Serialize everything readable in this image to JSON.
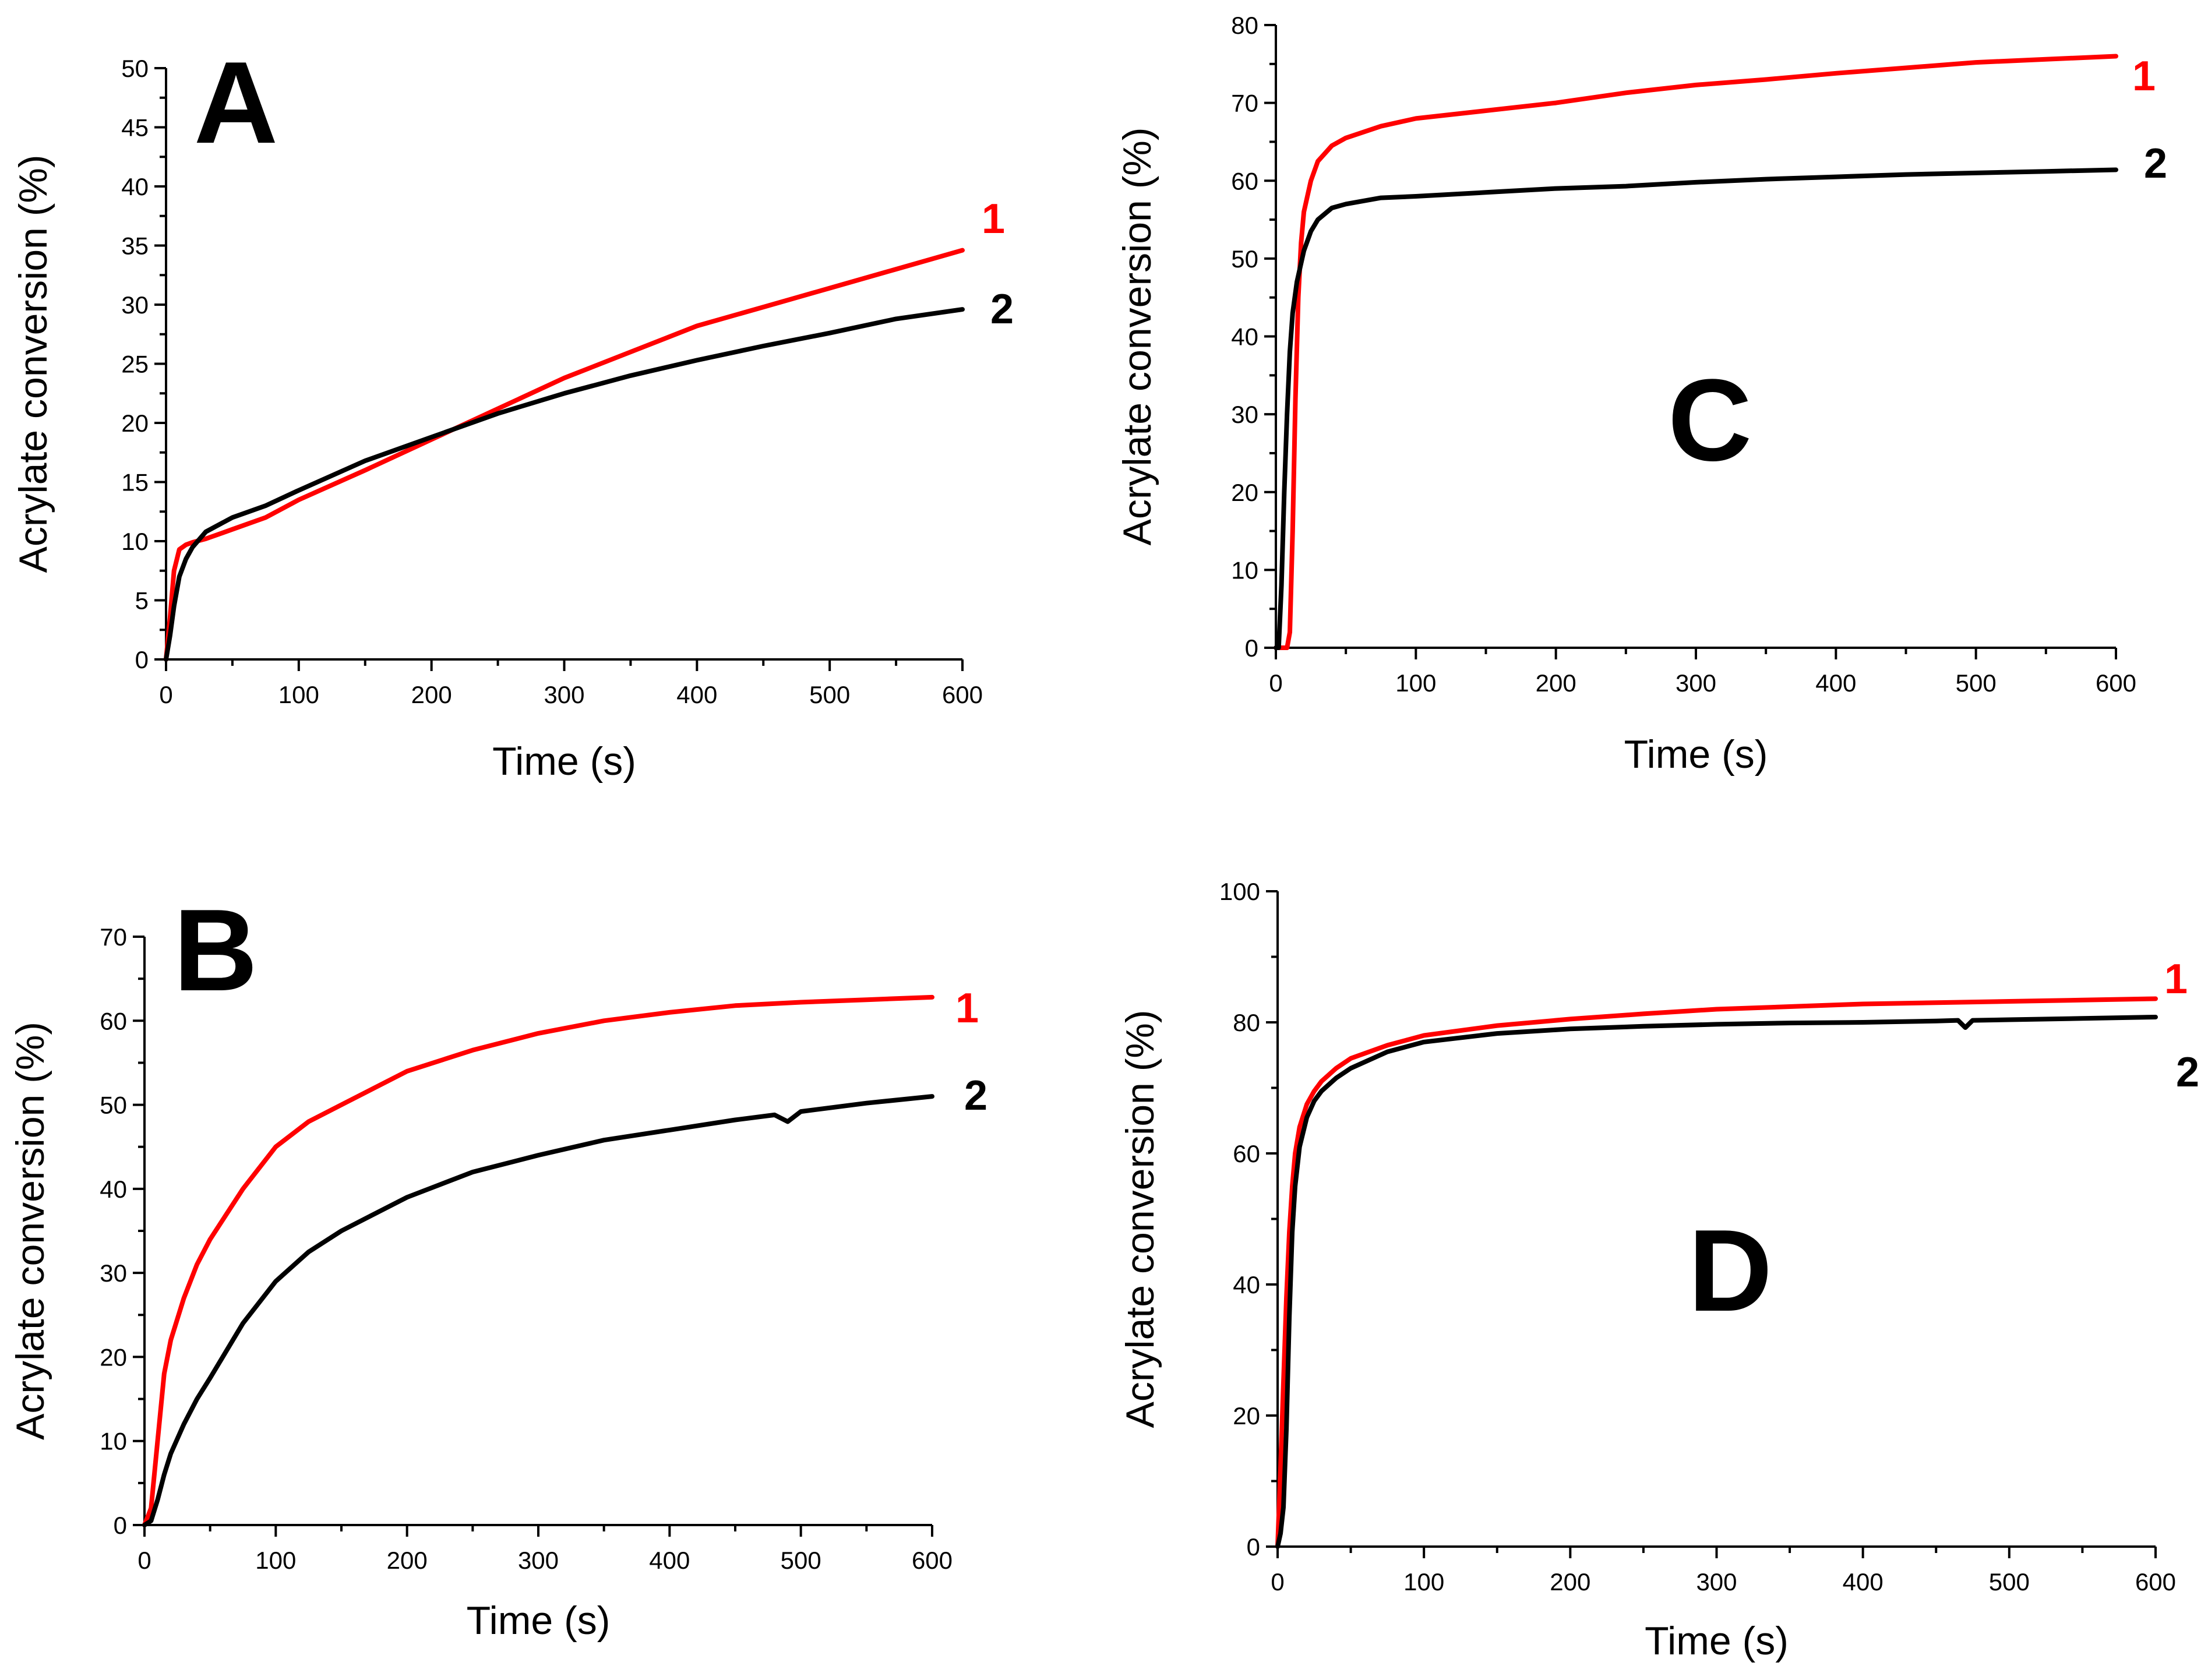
{
  "colors": {
    "series_1": "#ff0000",
    "series_2": "#000000",
    "axis": "#000000"
  },
  "chart_data": [
    {
      "type": "line",
      "panel_label": "A",
      "title": "",
      "xlabel": "Time (s)",
      "ylabel": "Acrylate conversion (%)",
      "xlim": [
        0,
        600
      ],
      "ylim": [
        0,
        50
      ],
      "x_major_ticks": [
        0,
        100,
        200,
        300,
        400,
        500,
        600
      ],
      "y_major_ticks": [
        0,
        5,
        10,
        15,
        20,
        25,
        30,
        35,
        40,
        45,
        50
      ],
      "grid": false,
      "series": [
        {
          "name": "1",
          "color": "#ff0000",
          "x": [
            0,
            3,
            6,
            10,
            15,
            20,
            30,
            50,
            75,
            100,
            150,
            200,
            250,
            300,
            350,
            400,
            450,
            500,
            550,
            600
          ],
          "y": [
            0,
            3.5,
            7.5,
            9.3,
            9.7,
            9.9,
            10.2,
            11.0,
            12.0,
            13.5,
            16.0,
            18.6,
            21.2,
            23.8,
            26.0,
            28.2,
            29.8,
            31.4,
            33.0,
            34.6
          ]
        },
        {
          "name": "2",
          "color": "#000000",
          "x": [
            0,
            3,
            6,
            10,
            15,
            20,
            30,
            50,
            75,
            100,
            150,
            200,
            250,
            300,
            350,
            400,
            450,
            500,
            550,
            600
          ],
          "y": [
            0,
            2.0,
            4.5,
            7.0,
            8.5,
            9.5,
            10.8,
            12.0,
            13.0,
            14.3,
            16.8,
            18.8,
            20.8,
            22.5,
            24.0,
            25.3,
            26.5,
            27.6,
            28.8,
            29.6
          ]
        }
      ]
    },
    {
      "type": "line",
      "panel_label": "B",
      "title": "",
      "xlabel": "Time (s)",
      "ylabel": "Acrylate conversion (%)",
      "xlim": [
        0,
        600
      ],
      "ylim": [
        0,
        70
      ],
      "x_major_ticks": [
        0,
        100,
        200,
        300,
        400,
        500,
        600
      ],
      "y_major_ticks": [
        0,
        10,
        20,
        30,
        40,
        50,
        60,
        70
      ],
      "grid": false,
      "series": [
        {
          "name": "1",
          "color": "#ff0000",
          "x": [
            0,
            5,
            10,
            15,
            20,
            30,
            40,
            50,
            75,
            100,
            125,
            150,
            200,
            250,
            300,
            350,
            400,
            450,
            500,
            550,
            600
          ],
          "y": [
            0,
            2,
            10,
            18,
            22,
            27,
            31,
            34,
            40,
            45,
            48,
            50,
            54,
            56.5,
            58.5,
            60,
            61,
            61.8,
            62.2,
            62.5,
            62.8
          ]
        },
        {
          "name": "2",
          "color": "#000000",
          "x": [
            0,
            5,
            10,
            15,
            20,
            30,
            40,
            50,
            75,
            100,
            125,
            150,
            200,
            250,
            300,
            350,
            400,
            450,
            480,
            490,
            500,
            550,
            600
          ],
          "y": [
            0,
            0.5,
            3,
            6,
            8.5,
            12,
            15,
            17.5,
            24,
            29,
            32.5,
            35,
            39,
            42,
            44,
            45.8,
            47,
            48.2,
            48.8,
            48.0,
            49.2,
            50.2,
            51
          ]
        }
      ]
    },
    {
      "type": "line",
      "panel_label": "C",
      "title": "",
      "xlabel": "Time (s)",
      "ylabel": "Acrylate conversion (%)",
      "xlim": [
        0,
        600
      ],
      "ylim": [
        0,
        80
      ],
      "x_major_ticks": [
        0,
        100,
        200,
        300,
        400,
        500,
        600
      ],
      "y_major_ticks": [
        0,
        10,
        20,
        30,
        40,
        50,
        60,
        70,
        80
      ],
      "grid": false,
      "series": [
        {
          "name": "1",
          "color": "#ff0000",
          "x": [
            0,
            8,
            10,
            12,
            14,
            16,
            18,
            20,
            25,
            30,
            40,
            50,
            75,
            100,
            150,
            200,
            250,
            300,
            350,
            400,
            450,
            500,
            550,
            600
          ],
          "y": [
            0,
            0,
            2,
            15,
            32,
            45,
            52,
            56,
            60,
            62.5,
            64.5,
            65.5,
            67,
            68,
            69,
            70,
            71.3,
            72.3,
            73,
            73.8,
            74.5,
            75.2,
            75.6,
            76
          ]
        },
        {
          "name": "2",
          "color": "#000000",
          "x": [
            0,
            2,
            4,
            6,
            8,
            10,
            12,
            15,
            20,
            25,
            30,
            40,
            50,
            75,
            100,
            150,
            200,
            250,
            300,
            350,
            400,
            450,
            500,
            550,
            600
          ],
          "y": [
            0,
            0,
            8,
            20,
            30,
            38,
            43,
            47,
            51,
            53.5,
            55,
            56.5,
            57,
            57.8,
            58,
            58.5,
            59,
            59.3,
            59.8,
            60.2,
            60.5,
            60.8,
            61,
            61.2,
            61.4
          ]
        }
      ]
    },
    {
      "type": "line",
      "panel_label": "D",
      "title": "",
      "xlabel": "Time (s)",
      "ylabel": "Acrylate conversion (%)",
      "xlim": [
        0,
        600
      ],
      "ylim": [
        0,
        100
      ],
      "x_major_ticks": [
        0,
        100,
        200,
        300,
        400,
        500,
        600
      ],
      "y_major_ticks": [
        0,
        20,
        40,
        60,
        80,
        100
      ],
      "grid": false,
      "series": [
        {
          "name": "1",
          "color": "#ff0000",
          "x": [
            0,
            2,
            4,
            6,
            8,
            10,
            12,
            15,
            20,
            25,
            30,
            40,
            50,
            75,
            100,
            150,
            200,
            250,
            300,
            350,
            400,
            450,
            500,
            550,
            600
          ],
          "y": [
            0,
            12,
            25,
            38,
            48,
            55,
            60,
            64,
            67.5,
            69.5,
            71,
            73,
            74.5,
            76.5,
            78,
            79.5,
            80.5,
            81.3,
            82,
            82.4,
            82.8,
            83,
            83.2,
            83.4,
            83.6
          ]
        },
        {
          "name": "2",
          "color": "#000000",
          "x": [
            0,
            2,
            4,
            6,
            8,
            10,
            12,
            15,
            20,
            25,
            30,
            40,
            50,
            75,
            100,
            150,
            200,
            250,
            300,
            350,
            400,
            450,
            465,
            470,
            475,
            500,
            550,
            600
          ],
          "y": [
            0,
            2,
            6,
            18,
            35,
            48,
            55,
            61,
            65.5,
            68,
            69.5,
            71.5,
            73,
            75.5,
            77,
            78.3,
            79,
            79.4,
            79.7,
            79.9,
            80,
            80.2,
            80.3,
            79.2,
            80.3,
            80.4,
            80.6,
            80.8
          ]
        }
      ]
    }
  ]
}
